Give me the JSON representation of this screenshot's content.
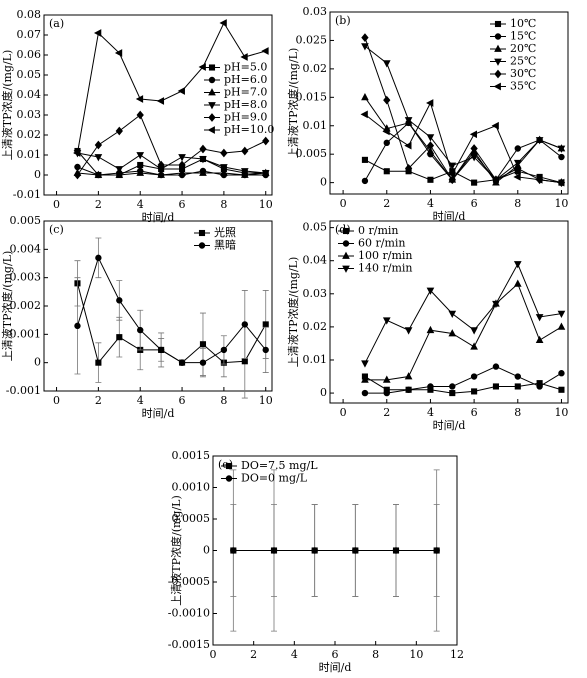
{
  "chart_data": [
    {
      "type": "line",
      "label": "(a)",
      "ylabel": "上清液TP浓度/(mg/L)",
      "xlabel": "时间/d",
      "x": [
        1,
        2,
        3,
        4,
        5,
        6,
        7,
        8,
        9,
        10
      ],
      "xlim": [
        -0.6,
        10.3
      ],
      "xticks": [
        0,
        2,
        4,
        6,
        8,
        10
      ],
      "ylim": [
        -0.01,
        0.08
      ],
      "yticks": [
        -0.01,
        0,
        0.01,
        0.02,
        0.03,
        0.04,
        0.05,
        0.06,
        0.07,
        0.08
      ],
      "legend": "center right",
      "series": [
        {
          "name": "pH=5.0",
          "color": "#000000",
          "marker": "square",
          "values": [
            0.012,
            0,
            0,
            0.005,
            0.003,
            0.003,
            0.008,
            0.003,
            0.001,
            0.001
          ]
        },
        {
          "name": "pH=6.0",
          "color": "#000000",
          "marker": "circle",
          "values": [
            0.004,
            0,
            0.001,
            0.002,
            0,
            0,
            0.002,
            0,
            0,
            0
          ]
        },
        {
          "name": "pH=7.0",
          "color": "#000000",
          "marker": "triangle-up",
          "values": [
            0.001,
            0,
            0,
            0.001,
            0,
            0.001,
            0.001,
            0.001,
            0,
            0.001
          ]
        },
        {
          "name": "pH=8.0",
          "color": "#000000",
          "marker": "triangle-down",
          "values": [
            0.011,
            0.009,
            0.003,
            0.01,
            0.003,
            0.009,
            0.008,
            0.004,
            0.002,
            0.001
          ]
        },
        {
          "name": "pH=9.0",
          "color": "#000000",
          "marker": "diamond",
          "values": [
            0,
            0.015,
            0.022,
            0.03,
            0.005,
            0.005,
            0.013,
            0.011,
            0.012,
            0.017
          ]
        },
        {
          "name": "pH=10.0",
          "color": "#000000",
          "marker": "triangle-left",
          "values": [
            0.011,
            0.071,
            0.061,
            0.038,
            0.037,
            0.042,
            0.054,
            0.076,
            0.059,
            0.062
          ]
        }
      ]
    },
    {
      "type": "line",
      "label": "(b)",
      "ylabel": "上清液TP浓度/(mg/L)",
      "xlabel": "时间/d",
      "x": [
        1,
        2,
        3,
        4,
        5,
        6,
        7,
        8,
        9,
        10
      ],
      "xlim": [
        -0.6,
        10.3
      ],
      "xticks": [
        0,
        2,
        4,
        6,
        8,
        10
      ],
      "ylim": [
        -0.002,
        0.03
      ],
      "yticks": [
        0,
        0.005,
        0.01,
        0.015,
        0.02,
        0.025,
        0.03
      ],
      "legend": "upper right",
      "series": [
        {
          "name": "10℃",
          "color": "#000000",
          "marker": "square",
          "values": [
            0.004,
            0.002,
            0.002,
            0.0005,
            0.002,
            0,
            0.0005,
            0.002,
            0.001,
            0
          ]
        },
        {
          "name": "15℃",
          "color": "#000000",
          "marker": "circle",
          "values": [
            0.0003,
            0.007,
            0.0105,
            0.005,
            0.0005,
            0.005,
            0.0005,
            0.006,
            0.0075,
            0.0045
          ]
        },
        {
          "name": "20℃",
          "color": "#000000",
          "marker": "triangle-up",
          "values": [
            0.015,
            0.0095,
            0.0105,
            0.0055,
            0.0005,
            0.0055,
            0,
            0.003,
            0.0075,
            0.006
          ]
        },
        {
          "name": "25℃",
          "color": "#000000",
          "marker": "triangle-down",
          "values": [
            0.024,
            0.021,
            0.011,
            0.008,
            0.003,
            0.0045,
            0.0005,
            0.0035,
            0.0075,
            0.006
          ]
        },
        {
          "name": "30℃",
          "color": "#000000",
          "marker": "diamond",
          "values": [
            0.0255,
            0.0145,
            0.0025,
            0.0065,
            0.0005,
            0.006,
            0.0005,
            0.0025,
            0.0005,
            0
          ]
        },
        {
          "name": "35℃",
          "color": "#000000",
          "marker": "triangle-left",
          "values": [
            0.012,
            0.009,
            0.0065,
            0.014,
            0.0015,
            0.0085,
            0.01,
            0.001,
            0.0005,
            0
          ]
        }
      ]
    },
    {
      "type": "line",
      "label": "(c)",
      "ylabel": "上清液TP浓度/(mg/L)",
      "xlabel": "时间/d",
      "x": [
        1,
        2,
        3,
        4,
        5,
        6,
        7,
        8,
        9,
        10
      ],
      "xlim": [
        -0.6,
        10.3
      ],
      "xticks": [
        0,
        2,
        4,
        6,
        8,
        10
      ],
      "ylim": [
        -0.001,
        0.005
      ],
      "yticks": [
        -0.001,
        0,
        0.001,
        0.002,
        0.003,
        0.004,
        0.005
      ],
      "legend": "upper right",
      "series": [
        {
          "name": "光照",
          "color": "#000000",
          "marker": "square",
          "values": [
            0.0028,
            0,
            0.0009,
            0.00045,
            0.00045,
            0,
            0.00065,
            0,
            5e-05,
            0.00135
          ],
          "errors": [
            0.0008,
            0.0007,
            0.0007,
            0.0007,
            0.0006,
            0.0001,
            0.0011,
            0.0005,
            0.0013,
            0.0012
          ]
        },
        {
          "name": "黑暗",
          "color": "#000000",
          "marker": "circle",
          "values": [
            0.0013,
            0.0037,
            0.0022,
            0.00115,
            0.00045,
            0,
            0,
            0.00045,
            0.00135,
            0.00045
          ],
          "errors": [
            0.0017,
            0.0007,
            0.0007,
            0.0007,
            0.0004,
            0.0001,
            0.0005,
            0.0005,
            0.0012,
            0.0008
          ]
        }
      ]
    },
    {
      "type": "line",
      "label": "(d)",
      "ylabel": "上清液TP浓度/(mg/L)",
      "xlabel": "时间/d",
      "x": [
        1,
        2,
        3,
        4,
        5,
        6,
        7,
        8,
        9,
        10
      ],
      "xlim": [
        -0.6,
        10.3
      ],
      "xticks": [
        0,
        2,
        4,
        6,
        8,
        10
      ],
      "ylim": [
        -0.003,
        0.052
      ],
      "yticks": [
        0,
        0.01,
        0.02,
        0.03,
        0.04,
        0.05
      ],
      "legend": "upper left",
      "series": [
        {
          "name": "0 r/min",
          "color": "#000000",
          "marker": "square",
          "values": [
            0.005,
            0.001,
            0.001,
            0.001,
            0,
            0.0005,
            0.002,
            0.002,
            0.003,
            0.001
          ]
        },
        {
          "name": "60 r/min",
          "color": "#000000",
          "marker": "circle",
          "values": [
            0,
            0,
            0.001,
            0.002,
            0.002,
            0.005,
            0.008,
            0.005,
            0.002,
            0.006
          ]
        },
        {
          "name": "100 r/min",
          "color": "#000000",
          "marker": "triangle-up",
          "values": [
            0.004,
            0.004,
            0.005,
            0.019,
            0.018,
            0.014,
            0.027,
            0.033,
            0.016,
            0.02
          ]
        },
        {
          "name": "140 r/min",
          "color": "#000000",
          "marker": "triangle-down",
          "values": [
            0.009,
            0.022,
            0.019,
            0.031,
            0.024,
            0.019,
            0.027,
            0.039,
            0.023,
            0.024
          ]
        }
      ]
    },
    {
      "type": "line",
      "label": "(e)",
      "ylabel": "上清液TP浓度/(mg/L)",
      "xlabel": "时间/d",
      "x": [
        1,
        3,
        5,
        7,
        9,
        11
      ],
      "xlim": [
        0,
        12
      ],
      "xticks": [
        0,
        2,
        4,
        6,
        8,
        10,
        12
      ],
      "ylim": [
        -0.0015,
        0.0015
      ],
      "yticks": [
        -0.0015,
        {
          "value": -0.001,
          "label": "-0.0010"
        },
        -0.0005,
        0,
        0.0005,
        {
          "value": 0.001,
          "label": "0.0010"
        },
        0.0015
      ],
      "legend": "upper left",
      "series": [
        {
          "name": "DO=7.5 mg/L",
          "color": "#000000",
          "marker": "square",
          "values": [
            0,
            0,
            0,
            0,
            0,
            0
          ],
          "errors": [
            0.00128,
            0.00128,
            0.00073,
            0.00073,
            0.00073,
            0.00128
          ]
        },
        {
          "name": "DO=0 mg/L",
          "color": "#000000",
          "marker": "circle",
          "values": [
            0,
            0,
            0,
            0,
            0,
            0
          ],
          "errors": [
            0.00073,
            0.00073,
            0.00073,
            0.00073,
            0.00073,
            0.00073
          ]
        }
      ]
    }
  ]
}
